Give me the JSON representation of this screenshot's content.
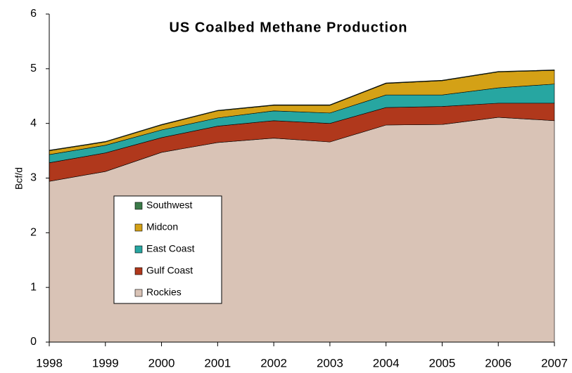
{
  "chart_data": {
    "type": "area",
    "stacked": true,
    "title": "US Coalbed Methane Production",
    "y_label": "Bcf/d",
    "x": [
      1998,
      1999,
      2000,
      2001,
      2002,
      2003,
      2004,
      2005,
      2006,
      2007
    ],
    "xlim": [
      1998,
      2007
    ],
    "xticks": [
      1998,
      1999,
      2000,
      2001,
      2002,
      2003,
      2004,
      2005,
      2006,
      2007
    ],
    "ylim": [
      0,
      6
    ],
    "yticks": [
      0,
      1,
      2,
      3,
      4,
      5,
      6
    ],
    "grid": false,
    "legend": "left",
    "series": [
      {
        "name": "Rockies",
        "color": "#d9c3b6",
        "values": [
          2.94,
          3.12,
          3.47,
          3.65,
          3.73,
          3.66,
          3.97,
          3.98,
          4.11,
          4.05
        ]
      },
      {
        "name": "Gulf Coast",
        "color": "#b0381c",
        "values": [
          0.34,
          0.34,
          0.27,
          0.3,
          0.32,
          0.34,
          0.32,
          0.33,
          0.26,
          0.32
        ]
      },
      {
        "name": "East Coast",
        "color": "#27a6a1",
        "values": [
          0.15,
          0.14,
          0.14,
          0.15,
          0.18,
          0.19,
          0.23,
          0.21,
          0.28,
          0.35
        ]
      },
      {
        "name": "Midcon",
        "color": "#d4a116",
        "values": [
          0.07,
          0.06,
          0.09,
          0.13,
          0.1,
          0.14,
          0.21,
          0.26,
          0.29,
          0.25
        ]
      },
      {
        "name": "Southwest",
        "color": "#3b7a49",
        "values": [
          0.01,
          0.01,
          0.01,
          0.01,
          0.01,
          0.01,
          0.01,
          0.01,
          0.01,
          0.01
        ]
      }
    ]
  }
}
